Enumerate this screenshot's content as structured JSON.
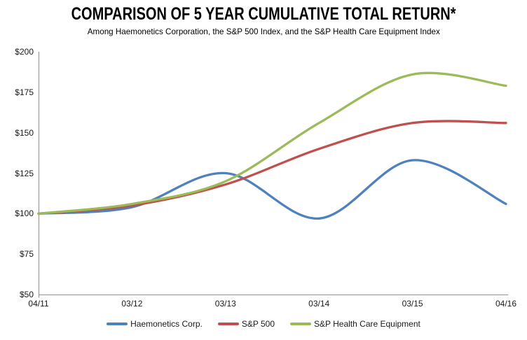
{
  "chart_data": {
    "type": "line",
    "title": "COMPARISON OF 5 YEAR CUMULATIVE TOTAL RETURN*",
    "subtitle": "Among Haemonetics Corporation, the S&P 500 Index, and the S&P Health Care Equipment Index",
    "categories": [
      "04/11",
      "03/12",
      "03/13",
      "03/14",
      "03/15",
      "04/16"
    ],
    "series": [
      {
        "name": "Haemonetics Corp.",
        "color": "#4F81BD",
        "values": [
          100,
          104,
          125,
          97,
          133,
          106
        ]
      },
      {
        "name": "S&P 500",
        "color": "#C0504D",
        "values": [
          100,
          105,
          118,
          140,
          156,
          156
        ]
      },
      {
        "name": "S&P Health Care Equipment",
        "color": "#9BBB59",
        "values": [
          100,
          106,
          120,
          156,
          186,
          179
        ]
      }
    ],
    "ylabel": "",
    "xlabel": "",
    "ylim": [
      50,
      200
    ],
    "ytick_step": 25,
    "ytick_prefix": "$",
    "grid": false,
    "smooth_lines": true,
    "legend_position": "bottom",
    "axis_color": "#8E8E8E",
    "text_color": "#1A1A1A",
    "background_color": "#FFFFFF"
  }
}
